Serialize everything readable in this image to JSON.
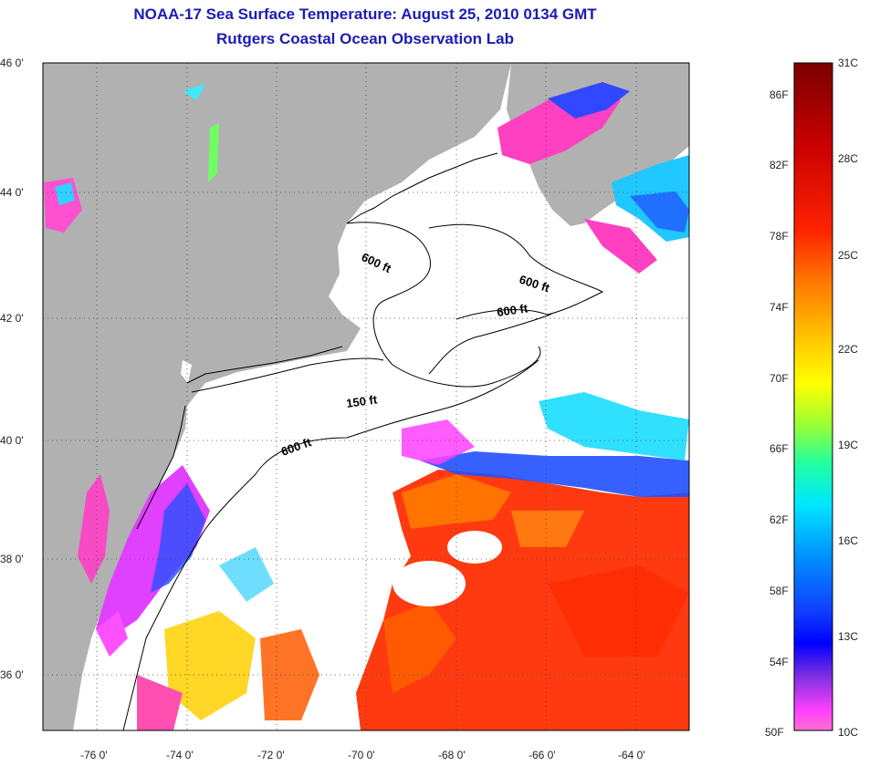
{
  "title": {
    "line1": "NOAA-17 Sea Surface Temperature:  August 25, 2010 0134 GMT",
    "line2": "Rutgers Coastal Ocean Observation Lab"
  },
  "map": {
    "lat_labels": [
      "46 0'",
      "44 0'",
      "42 0'",
      "40 0'",
      "38 0'",
      "36 0'"
    ],
    "lon_labels": [
      "-76 0'",
      "-74 0'",
      "-72 0'",
      "-70 0'",
      "-68 0'",
      "-66 0'",
      "-64 0'"
    ],
    "contour_labels": [
      "600 ft",
      "600 ft",
      "600 ft",
      "150 ft",
      "600 ft"
    ],
    "colors": {
      "land": "#b1b1b1",
      "cloud": "#ffffff",
      "frame": "#000000"
    }
  },
  "colorbar": {
    "fahrenheit": [
      "86F",
      "82F",
      "78F",
      "74F",
      "70F",
      "66F",
      "62F",
      "58F",
      "54F",
      "50F"
    ],
    "celsius": [
      "31C",
      "28C",
      "25C",
      "22C",
      "19C",
      "16C",
      "13C",
      "10C"
    ],
    "gradient_colors": [
      "#7a0000",
      "#c40000",
      "#ff1a00",
      "#ff6a00",
      "#ffb000",
      "#ffff00",
      "#a0ff20",
      "#20ff90",
      "#00e0ff",
      "#0090ff",
      "#1040ff",
      "#0000ff",
      "#8020e0",
      "#ff40ff",
      "#ff70d0"
    ]
  }
}
